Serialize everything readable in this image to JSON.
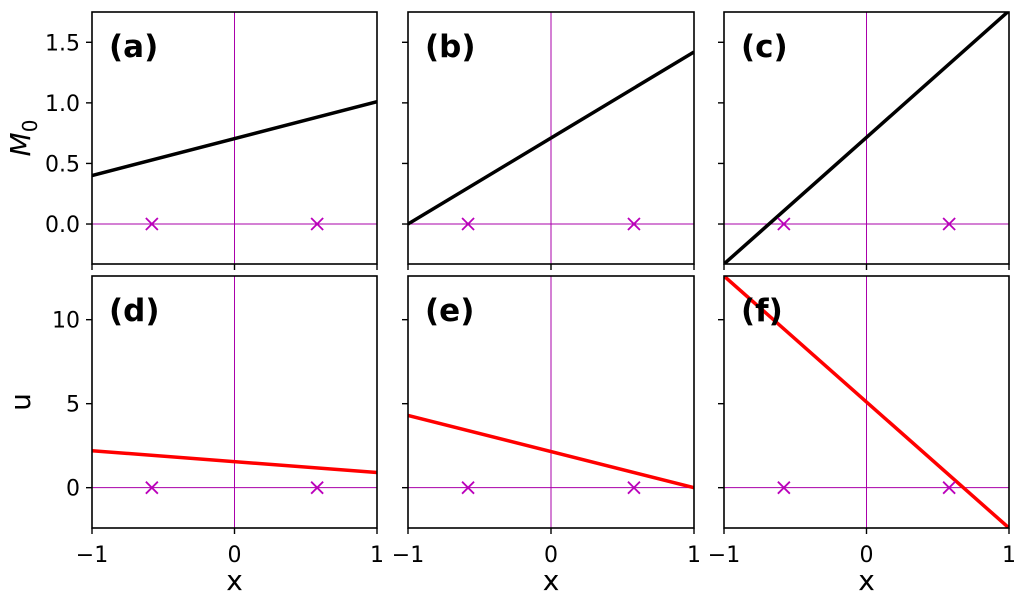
{
  "chart_data": [
    {
      "type": "line",
      "panel": "a",
      "label": "(a)",
      "row": 0,
      "col": 0,
      "xlim": [
        -1,
        1
      ],
      "ylim": [
        -0.33,
        1.75
      ],
      "xticks": [
        -1,
        0,
        1
      ],
      "yticks": [
        0.0,
        0.5,
        1.0,
        1.5
      ],
      "ytick_labels": [
        "0.0",
        "0.5",
        "1.0",
        "1.5"
      ],
      "xlabel": "",
      "ylabel": "M_0",
      "series": [
        {
          "color": "#000000",
          "x": [
            -1,
            1
          ],
          "y": [
            0.4,
            1.01
          ]
        }
      ],
      "markers": {
        "color": "#bb00bb",
        "shape": "x",
        "x": [
          -0.58,
          0.58
        ],
        "y": [
          0,
          0
        ]
      },
      "reference_lines": {
        "color": "#aa00aa",
        "x": 0,
        "y": 0
      }
    },
    {
      "type": "line",
      "panel": "b",
      "label": "(b)",
      "row": 0,
      "col": 1,
      "xlim": [
        -1,
        1
      ],
      "ylim": [
        -0.33,
        1.75
      ],
      "xticks": [
        -1,
        0,
        1
      ],
      "yticks": [
        0.0,
        0.5,
        1.0,
        1.5
      ],
      "ytick_labels": [],
      "xlabel": "",
      "ylabel": "",
      "series": [
        {
          "color": "#000000",
          "x": [
            -1,
            1
          ],
          "y": [
            0.0,
            1.42
          ]
        }
      ],
      "markers": {
        "color": "#bb00bb",
        "shape": "x",
        "x": [
          -0.58,
          0.58
        ],
        "y": [
          0,
          0
        ]
      },
      "reference_lines": {
        "color": "#aa00aa",
        "x": 0,
        "y": 0
      }
    },
    {
      "type": "line",
      "panel": "c",
      "label": "(c)",
      "row": 0,
      "col": 2,
      "xlim": [
        -1,
        1
      ],
      "ylim": [
        -0.33,
        1.75
      ],
      "xticks": [
        -1,
        0,
        1
      ],
      "yticks": [
        0.0,
        0.5,
        1.0,
        1.5
      ],
      "ytick_labels": [],
      "xlabel": "",
      "ylabel": "",
      "series": [
        {
          "color": "#000000",
          "x": [
            -1,
            1
          ],
          "y": [
            -0.33,
            1.76
          ]
        }
      ],
      "markers": {
        "color": "#bb00bb",
        "shape": "x",
        "x": [
          -0.58,
          0.58
        ],
        "y": [
          0,
          0
        ]
      },
      "reference_lines": {
        "color": "#aa00aa",
        "x": 0,
        "y": 0
      }
    },
    {
      "type": "line",
      "panel": "d",
      "label": "(d)",
      "row": 1,
      "col": 0,
      "xlim": [
        -1,
        1
      ],
      "ylim": [
        -2.4,
        12.6
      ],
      "xticks": [
        -1,
        0,
        1
      ],
      "yticks": [
        0,
        5,
        10
      ],
      "ytick_labels": [
        "0",
        "5",
        "10"
      ],
      "xtick_labels": [
        "−1",
        "0",
        "1"
      ],
      "xlabel": "x",
      "ylabel": "u",
      "series": [
        {
          "color": "#ff0000",
          "x": [
            -1,
            1
          ],
          "y": [
            2.2,
            0.9
          ]
        }
      ],
      "markers": {
        "color": "#bb00bb",
        "shape": "x",
        "x": [
          -0.58,
          0.58
        ],
        "y": [
          0,
          0
        ]
      },
      "reference_lines": {
        "color": "#aa00aa",
        "x": 0,
        "y": 0
      }
    },
    {
      "type": "line",
      "panel": "e",
      "label": "(e)",
      "row": 1,
      "col": 1,
      "xlim": [
        -1,
        1
      ],
      "ylim": [
        -2.4,
        12.6
      ],
      "xticks": [
        -1,
        0,
        1
      ],
      "yticks": [
        0,
        5,
        10
      ],
      "ytick_labels": [],
      "xtick_labels": [
        "−1",
        "0",
        "1"
      ],
      "xlabel": "x",
      "ylabel": "",
      "series": [
        {
          "color": "#ff0000",
          "x": [
            -1,
            1
          ],
          "y": [
            4.3,
            0.0
          ]
        }
      ],
      "markers": {
        "color": "#bb00bb",
        "shape": "x",
        "x": [
          -0.58,
          0.58
        ],
        "y": [
          0,
          0
        ]
      },
      "reference_lines": {
        "color": "#aa00aa",
        "x": 0,
        "y": 0
      }
    },
    {
      "type": "line",
      "panel": "f",
      "label": "(f)",
      "row": 1,
      "col": 2,
      "xlim": [
        -1,
        1
      ],
      "ylim": [
        -2.4,
        12.6
      ],
      "xticks": [
        -1,
        0,
        1
      ],
      "yticks": [
        0,
        5,
        10
      ],
      "ytick_labels": [],
      "xtick_labels": [
        "−1",
        "0",
        "1"
      ],
      "xlabel": "x",
      "ylabel": "",
      "series": [
        {
          "color": "#ff0000",
          "x": [
            -1,
            1
          ],
          "y": [
            12.6,
            -2.4
          ]
        }
      ],
      "markers": {
        "color": "#bb00bb",
        "shape": "x",
        "x": [
          -0.58,
          0.58
        ],
        "y": [
          0,
          0
        ]
      },
      "reference_lines": {
        "color": "#aa00aa",
        "x": 0,
        "y": 0
      }
    }
  ]
}
